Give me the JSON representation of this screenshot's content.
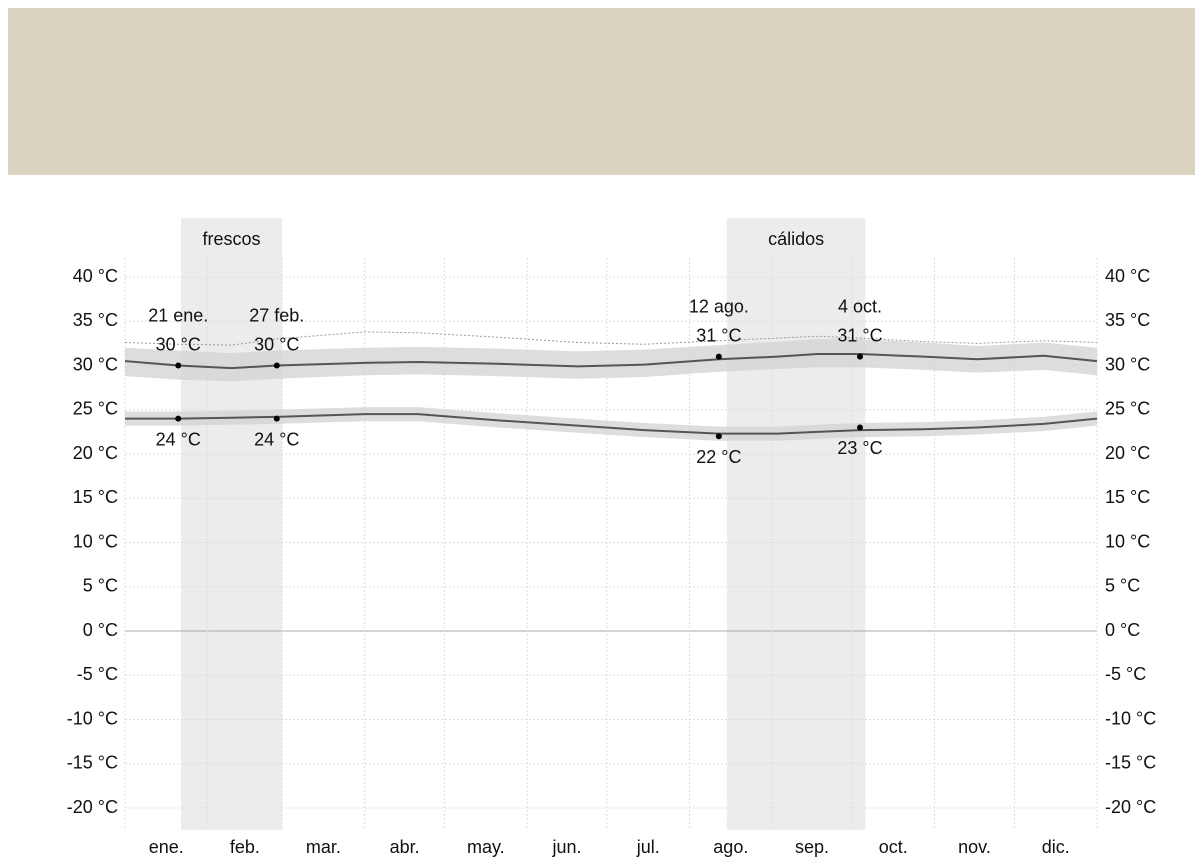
{
  "chart_data": {
    "type": "line",
    "xlim": [
      0,
      365
    ],
    "xticks": [
      0,
      31,
      59,
      90,
      120,
      151,
      181,
      212,
      243,
      273,
      304,
      334,
      365
    ],
    "months": [
      "ene.",
      "feb.",
      "mar.",
      "abr.",
      "may.",
      "jun.",
      "jul.",
      "ago.",
      "sep.",
      "oct.",
      "nov.",
      "dic."
    ],
    "ylim": [
      -20,
      40
    ],
    "yticks": [
      {
        "value": 40,
        "label": "40 °C"
      },
      {
        "value": 35,
        "label": "35 °C"
      },
      {
        "value": 30,
        "label": "30 °C"
      },
      {
        "value": 25,
        "label": "25 °C"
      },
      {
        "value": 20,
        "label": "20 °C"
      },
      {
        "value": 15,
        "label": "15 °C"
      },
      {
        "value": 10,
        "label": "10 °C"
      },
      {
        "value": 5,
        "label": "5 °C"
      },
      {
        "value": 0,
        "label": "0 °C"
      },
      {
        "value": -5,
        "label": "-5 °C"
      },
      {
        "value": -10,
        "label": "-10 °C"
      },
      {
        "value": -15,
        "label": "-15 °C"
      },
      {
        "value": -20,
        "label": "-20 °C"
      }
    ],
    "grid": true,
    "seasons": [
      {
        "label": "frescos",
        "start": 21,
        "end": 59
      },
      {
        "label": "cálidos",
        "start": 226,
        "end": 278
      }
    ],
    "x": [
      0,
      20,
      40,
      57,
      90,
      110,
      140,
      170,
      195,
      223,
      245,
      260,
      276,
      300,
      320,
      345,
      365
    ],
    "series": [
      {
        "color": "#555555",
        "values": [
          30.5,
          30,
          29.7,
          30,
          30.3,
          30.4,
          30.2,
          29.9,
          30.1,
          30.7,
          31,
          31.3,
          31.3,
          31,
          30.7,
          31.1,
          30.5
        ],
        "band_low": [
          28.8,
          28.4,
          28.2,
          28.5,
          28.9,
          29,
          28.8,
          28.5,
          28.7,
          29.3,
          29.6,
          29.8,
          29.8,
          29.5,
          29.2,
          29.5,
          28.9
        ],
        "band_high": [
          32,
          31.7,
          31.4,
          31.7,
          32,
          32.1,
          31.9,
          31.6,
          31.8,
          32.3,
          32.7,
          33,
          33,
          32.6,
          32.2,
          32.6,
          32
        ],
        "dotted": [
          32.6,
          32.4,
          32.3,
          33,
          33.8,
          33.7,
          33.2,
          32.6,
          32.4,
          32.8,
          33.1,
          33.3,
          33.1,
          32.7,
          32.5,
          32.8,
          32.6
        ]
      },
      {
        "color": "#555555",
        "values": [
          24,
          24,
          24.1,
          24.2,
          24.5,
          24.5,
          23.8,
          23.2,
          22.7,
          22.3,
          22.3,
          22.5,
          22.7,
          22.8,
          23,
          23.4,
          24
        ],
        "band_low": [
          23.2,
          23.2,
          23.3,
          23.4,
          23.7,
          23.7,
          23,
          22.4,
          21.9,
          21.5,
          21.5,
          21.7,
          21.9,
          22,
          22.2,
          22.6,
          23.2
        ],
        "band_high": [
          24.8,
          24.8,
          24.9,
          25,
          25.3,
          25.3,
          24.6,
          24,
          23.5,
          23.1,
          23.1,
          23.3,
          23.5,
          23.6,
          23.8,
          24.2,
          24.8
        ]
      }
    ],
    "annotations": [
      {
        "x": 20,
        "value": 30,
        "date_label": "21 ene.",
        "value_label": "30 °C",
        "position": "above"
      },
      {
        "x": 57,
        "value": 30,
        "date_label": "27 feb.",
        "value_label": "30 °C",
        "position": "above"
      },
      {
        "x": 223,
        "value": 31,
        "date_label": "12 ago.",
        "value_label": "31 °C",
        "position": "above"
      },
      {
        "x": 276,
        "value": 31,
        "date_label": "4 oct.",
        "value_label": "31 °C",
        "position": "above"
      },
      {
        "x": 20,
        "value": 24,
        "value_label": "24 °C",
        "position": "below"
      },
      {
        "x": 57,
        "value": 24,
        "value_label": "24 °C",
        "position": "below"
      },
      {
        "x": 223,
        "value": 22,
        "value_label": "22 °C",
        "position": "below"
      },
      {
        "x": 276,
        "value": 23,
        "value_label": "23 °C",
        "position": "below"
      }
    ]
  }
}
